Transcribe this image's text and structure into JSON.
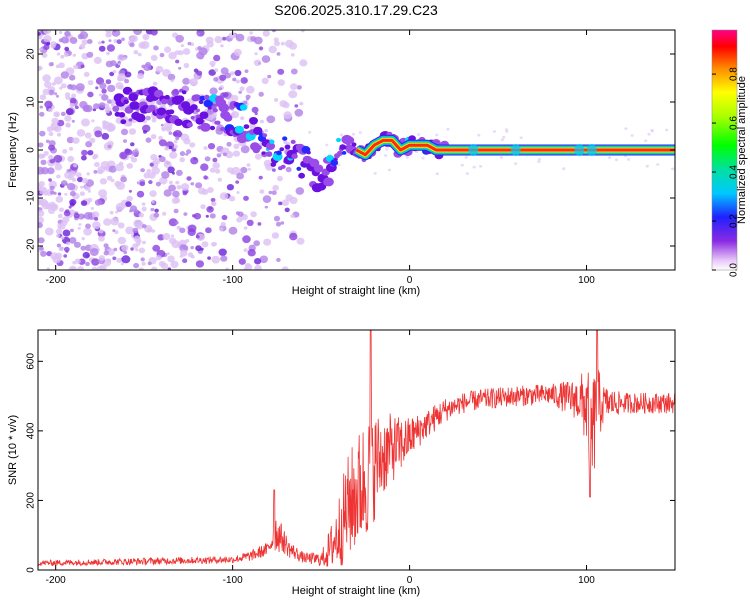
{
  "title": "S206.2025.310.17.29.C23",
  "chart_data": [
    {
      "type": "heatmap",
      "xlabel": "Height of straight line (km)",
      "ylabel": "Frequency (Hz)",
      "xlim": [
        -210,
        150
      ],
      "ylim": [
        -25,
        25
      ],
      "xticks": [
        -200,
        -100,
        0,
        100
      ],
      "yticks": [
        -20,
        -10,
        0,
        10,
        20
      ],
      "colorbar": {
        "label": "Normalized spectral amplitude",
        "range": [
          0,
          0.98
        ],
        "ticks": [
          "0.0",
          "0.2",
          "0.4",
          "0.6",
          "0.8"
        ],
        "ticks_values": [
          0,
          0.2,
          0.4,
          0.6,
          0.8
        ]
      },
      "ridge": {
        "x": [
          -130,
          -115,
          -100,
          -92,
          -85,
          -80,
          -75,
          -70,
          -62,
          -55,
          -50,
          -45,
          -40,
          -35,
          -30,
          -25,
          -20,
          -15,
          -10,
          -5,
          0,
          5,
          10,
          15,
          150
        ],
        "freq": [
          9,
          8,
          7,
          5,
          3,
          1,
          0,
          -1,
          -2,
          -4,
          -5,
          -4,
          -1,
          1,
          0,
          -1,
          1,
          2,
          2,
          0,
          1,
          1,
          1,
          0,
          0
        ]
      },
      "line_frequency": 0
    },
    {
      "type": "line",
      "xlabel": "Height of straight line (km)",
      "ylabel": "SNR (10 * v/v)",
      "xlim": [
        -210,
        150
      ],
      "ylim": [
        0,
        690
      ],
      "xticks": [
        -200,
        -100,
        0,
        100
      ],
      "yticks": [
        0,
        200,
        400,
        600
      ],
      "color": "#ee3333",
      "envelope": {
        "x": [
          -210,
          -150,
          -100,
          -90,
          -80,
          -76,
          -72,
          -68,
          -60,
          -50,
          -45,
          -40,
          -35,
          -30,
          -25,
          -20,
          -15,
          -10,
          -5,
          0,
          5,
          10,
          15,
          20,
          25,
          30,
          40,
          60,
          80,
          95,
          100,
          103,
          106,
          110,
          120,
          150
        ],
        "mean": [
          20,
          25,
          30,
          40,
          60,
          110,
          90,
          60,
          35,
          30,
          60,
          110,
          180,
          220,
          260,
          300,
          330,
          350,
          360,
          380,
          400,
          420,
          440,
          460,
          470,
          480,
          490,
          500,
          505,
          490,
          470,
          380,
          470,
          480,
          480,
          480
        ],
        "amp": [
          8,
          10,
          10,
          15,
          20,
          60,
          40,
          25,
          15,
          20,
          60,
          110,
          150,
          170,
          180,
          160,
          120,
          100,
          80,
          60,
          50,
          40,
          40,
          35,
          30,
          30,
          30,
          30,
          30,
          60,
          120,
          180,
          120,
          50,
          30,
          30
        ]
      },
      "spikes": [
        {
          "x": -76.5,
          "y": 230
        },
        {
          "x": -22,
          "y": 690
        },
        {
          "x": 102,
          "y": 210
        },
        {
          "x": 106,
          "y": 690
        }
      ]
    }
  ]
}
